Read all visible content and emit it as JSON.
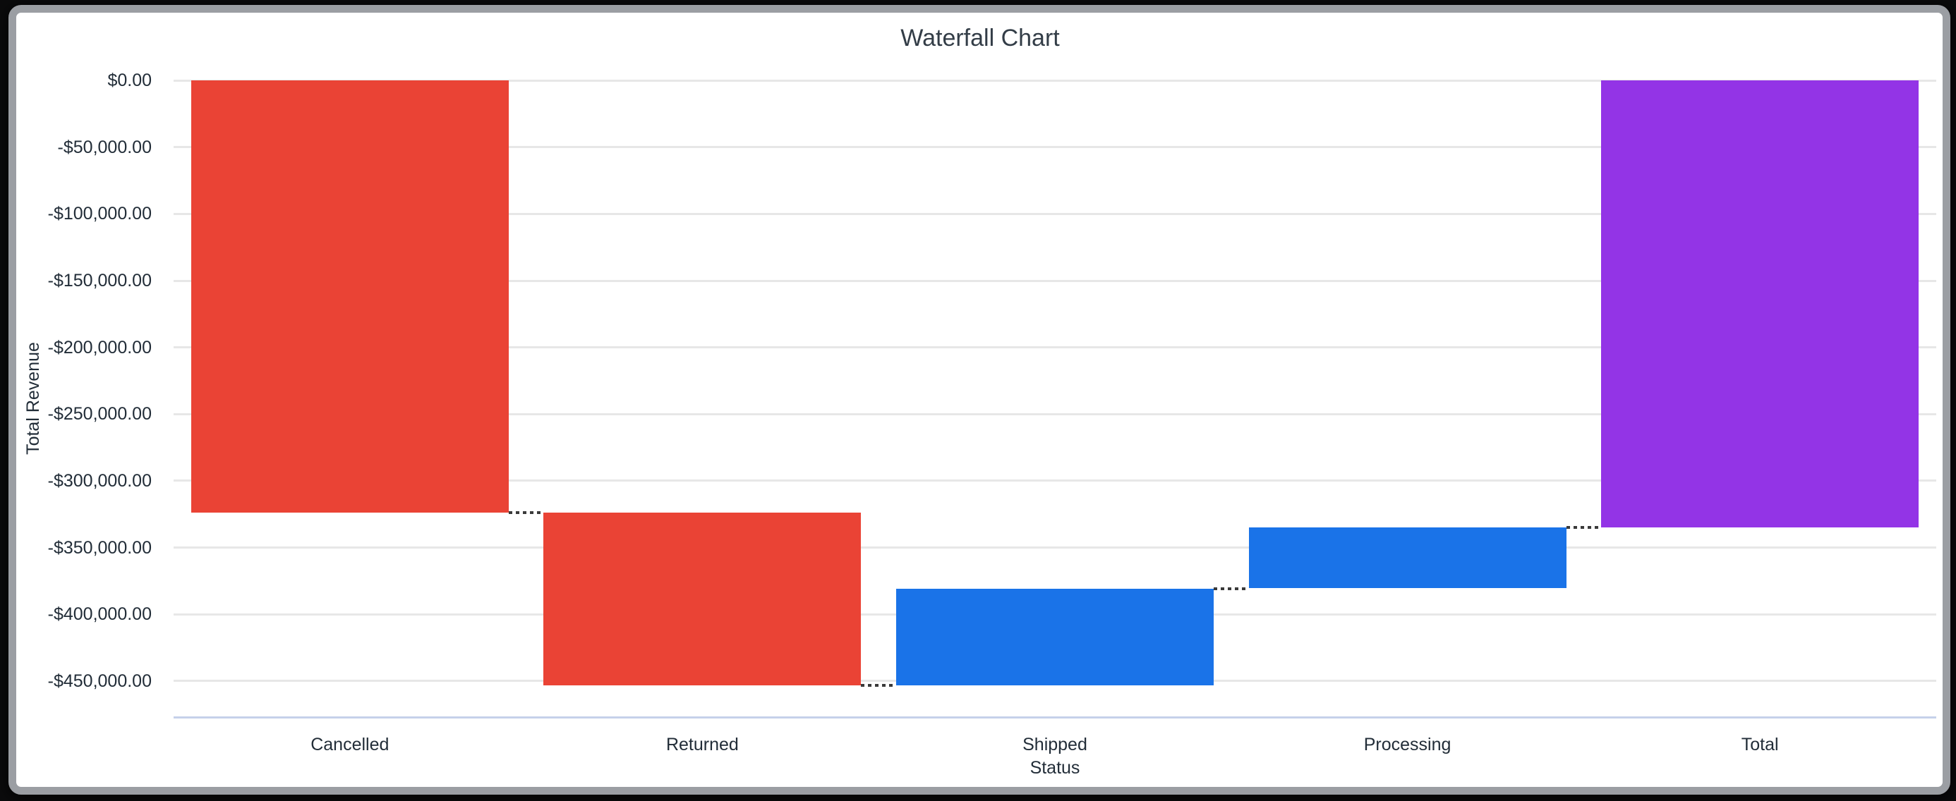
{
  "chart_data": {
    "type": "bar",
    "subtype": "waterfall",
    "title": "Waterfall Chart",
    "xlabel": "Status",
    "ylabel": "Total Revenue",
    "legend": "none",
    "grid": true,
    "y_axis_max": 0,
    "y_axis_min": -477000,
    "categories": [
      "Cancelled",
      "Returned",
      "Shipped",
      "Processing",
      "Total"
    ],
    "y_ticks": [
      {
        "value": 0,
        "label": "$0.00"
      },
      {
        "value": -50000,
        "label": "-$50,000.00"
      },
      {
        "value": -100000,
        "label": "-$100,000.00"
      },
      {
        "value": -150000,
        "label": "-$150,000.00"
      },
      {
        "value": -200000,
        "label": "-$200,000.00"
      },
      {
        "value": -250000,
        "label": "-$250,000.00"
      },
      {
        "value": -300000,
        "label": "-$300,000.00"
      },
      {
        "value": -350000,
        "label": "-$350,000.00"
      },
      {
        "value": -400000,
        "label": "-$400,000.00"
      },
      {
        "value": -450000,
        "label": "-$450,000.00"
      }
    ],
    "steps": [
      {
        "label": "Cancelled",
        "delta": -323800,
        "start": 0,
        "end": -323800,
        "direction": "fall",
        "color": "#ea4335"
      },
      {
        "label": "Returned",
        "delta": -129600,
        "start": -323800,
        "end": -453400,
        "direction": "fall",
        "color": "#ea4335"
      },
      {
        "label": "Shipped",
        "delta": 72800,
        "start": -453400,
        "end": -380600,
        "direction": "rise",
        "color": "#1a73e8"
      },
      {
        "label": "Processing",
        "delta": 45600,
        "start": -380600,
        "end": -335000,
        "direction": "rise",
        "color": "#1a73e8"
      },
      {
        "label": "Total",
        "delta": -335000,
        "start": 0,
        "end": -335000,
        "direction": "total",
        "color": "#9334e6"
      }
    ],
    "colors": {
      "fall": "#ea4335",
      "rise": "#1a73e8",
      "total": "#9334e6",
      "gridline": "#e7e7e7",
      "baseline": "#c6d1ea",
      "connector": "#3a3a3a"
    }
  }
}
